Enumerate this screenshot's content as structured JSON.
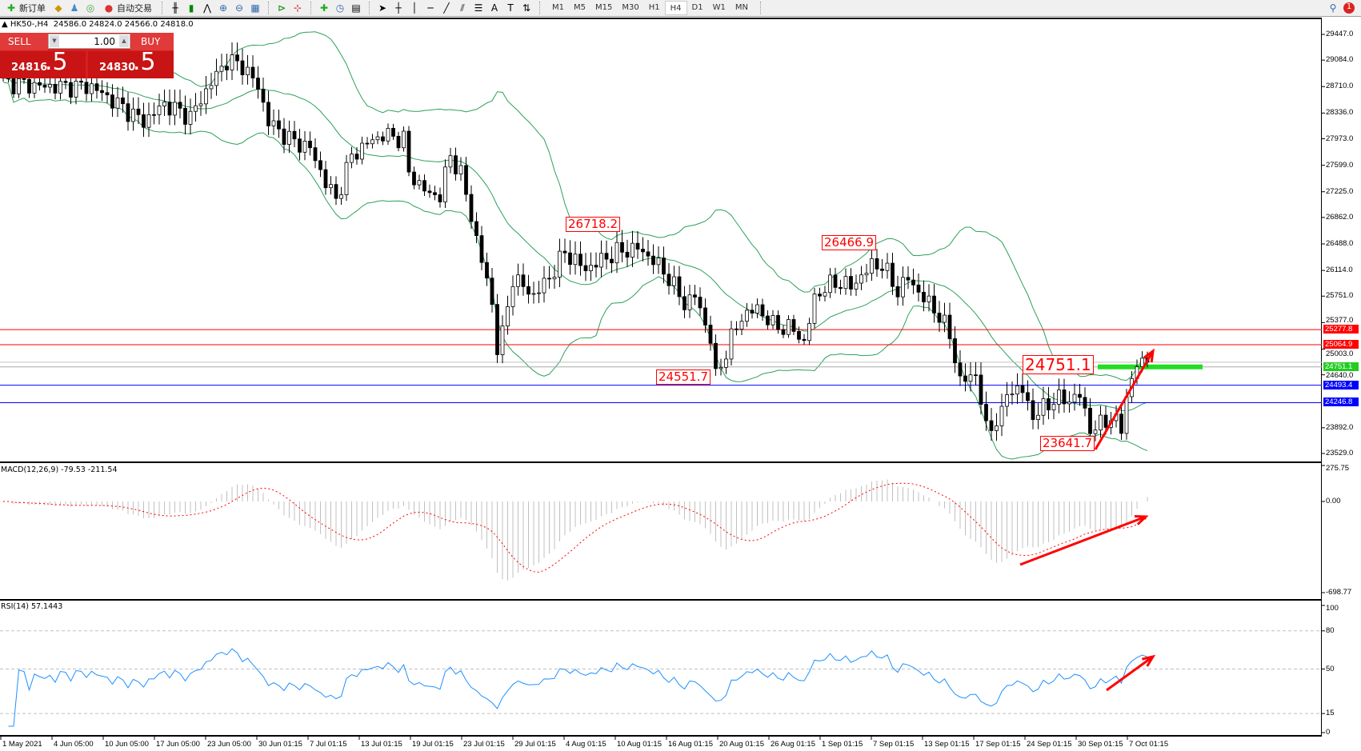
{
  "toolbar": {
    "new_order": "新订单",
    "auto_trading": "自动交易",
    "timeframes": [
      "M1",
      "M5",
      "M15",
      "M30",
      "H1",
      "H4",
      "D1",
      "W1",
      "MN"
    ],
    "selected_timeframe": "H4",
    "notification_count": "1"
  },
  "header": {
    "symbol": "HK50-,H4",
    "ohlc": "24586.0 24824.0 24566.0 24818.0"
  },
  "trade_panel": {
    "sell_label": "SELL",
    "buy_label": "BUY",
    "lot": "1.00",
    "sell_price_main": "24816",
    "sell_price_pips": ".5",
    "buy_price_main": "24830",
    "buy_price_pips": ".5",
    "color": "#d81f1f"
  },
  "chart": {
    "type": "candlestick",
    "price_axis": [
      "29447.0",
      "29084.0",
      "28710.0",
      "28336.0",
      "27973.0",
      "27599.0",
      "27225.0",
      "26862.0",
      "26488.0",
      "26114.0",
      "25751.0",
      "25377.0",
      "25003.0",
      "24640.0",
      "23892.0",
      "23529.0"
    ],
    "price_range": [
      23529,
      29447
    ],
    "current_price": 24818.0,
    "hlines": [
      {
        "value": "25277.8",
        "color": "#ff0000"
      },
      {
        "value": "25064.9",
        "color": "#ff0000"
      },
      {
        "value": "24751.1",
        "color": "#22cc22"
      },
      {
        "value": "24493.4",
        "color": "#0000ff"
      },
      {
        "value": "24246.8",
        "color": "#0000ff"
      }
    ],
    "annotations": [
      "26718.2",
      "26466.9",
      "24551.7",
      "24751.1",
      "23641.7"
    ],
    "close_path": [
      [
        0,
        28769
      ],
      [
        8,
        28710
      ],
      [
        17,
        28710
      ],
      [
        22,
        28464
      ],
      [
        27,
        28215
      ],
      [
        31,
        28464
      ],
      [
        36,
        28283
      ],
      [
        40,
        28769
      ],
      [
        43,
        29074
      ],
      [
        46,
        29009
      ],
      [
        49,
        28710
      ],
      [
        51,
        28215
      ],
      [
        55,
        27967
      ],
      [
        59,
        27840
      ],
      [
        62,
        27357
      ],
      [
        64,
        27115
      ],
      [
        67,
        27730
      ],
      [
        70,
        27910
      ],
      [
        73,
        28030
      ],
      [
        77,
        27967
      ],
      [
        78,
        27485
      ],
      [
        82,
        27180
      ],
      [
        84,
        27180
      ],
      [
        86,
        27730
      ],
      [
        88,
        27485
      ],
      [
        90,
        26870
      ],
      [
        92,
        26260
      ],
      [
        94,
        25640
      ],
      [
        95,
        25030
      ],
      [
        96,
        25200
      ],
      [
        98,
        26010
      ],
      [
        102,
        25760
      ],
      [
        105,
        26010
      ],
      [
        108,
        26370
      ],
      [
        112,
        26130
      ],
      [
        115,
        26260
      ],
      [
        118,
        26370
      ],
      [
        122,
        26430
      ],
      [
        125,
        26260
      ],
      [
        128,
        26010
      ],
      [
        131,
        25640
      ],
      [
        133,
        25760
      ],
      [
        136,
        25155
      ],
      [
        137,
        24600
      ],
      [
        140,
        25155
      ],
      [
        142,
        25460
      ],
      [
        145,
        25580
      ],
      [
        148,
        25340
      ],
      [
        152,
        25280
      ],
      [
        154,
        25090
      ],
      [
        156,
        25710
      ],
      [
        158,
        25880
      ],
      [
        161,
        25950
      ],
      [
        163,
        25880
      ],
      [
        167,
        26190
      ],
      [
        169,
        26190
      ],
      [
        172,
        25820
      ],
      [
        174,
        26010
      ],
      [
        177,
        25710
      ],
      [
        179,
        25580
      ],
      [
        182,
        25210
      ],
      [
        184,
        24540
      ],
      [
        187,
        24660
      ],
      [
        189,
        23870
      ],
      [
        192,
        24050
      ],
      [
        193,
        24420
      ],
      [
        196,
        24420
      ],
      [
        198,
        24050
      ],
      [
        201,
        24230
      ],
      [
        202,
        24290
      ],
      [
        205,
        24290
      ],
      [
        207,
        24350
      ],
      [
        209,
        23870
      ],
      [
        211,
        23930
      ],
      [
        213,
        24050
      ],
      [
        215,
        23870
      ],
      [
        216,
        24350
      ],
      [
        218,
        24780
      ],
      [
        220,
        24818
      ]
    ],
    "bollinger_color": "#2ca05a",
    "dates": [
      "1 May 2021",
      "4 Jun 05:00",
      "10 Jun 05:00",
      "17 Jun 05:00",
      "23 Jun 05:00",
      "30 Jun 01:15",
      "7 Jul 01:15",
      "13 Jul 01:15",
      "19 Jul 01:15",
      "23 Jul 01:15",
      "29 Jul 01:15",
      "4 Aug 01:15",
      "10 Aug 01:15",
      "16 Aug 01:15",
      "20 Aug 01:15",
      "26 Aug 01:15",
      "1 Sep 01:15",
      "7 Sep 01:15",
      "13 Sep 01:15",
      "17 Sep 01:15",
      "24 Sep 01:15",
      "30 Sep 01:15",
      "7 Oct 01:15"
    ]
  },
  "macd": {
    "label": "MACD(12,26,9) -79.53 -211.54",
    "axis": [
      "275.75",
      "0.00",
      "-698.77"
    ],
    "range": [
      -698.77,
      275.75
    ]
  },
  "rsi": {
    "label": "RSI(14) 57.1443",
    "axis": [
      "100",
      "80",
      "50",
      "15",
      "0"
    ],
    "levels": [
      80,
      50,
      15
    ]
  }
}
